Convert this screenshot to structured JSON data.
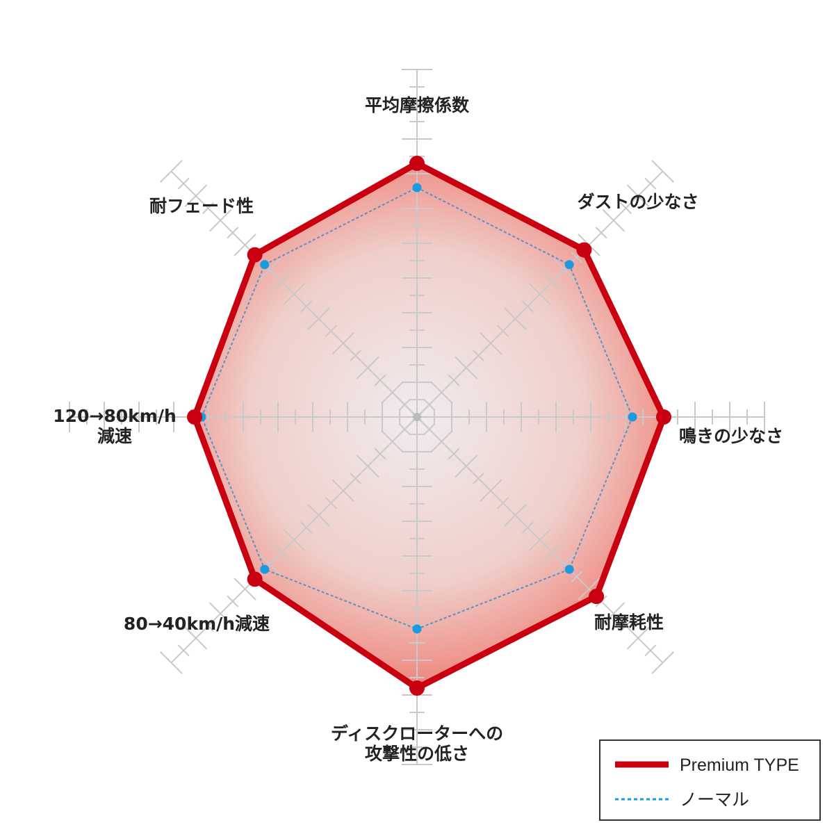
{
  "chart_data": {
    "type": "radar",
    "axis_range": [
      0,
      10
    ],
    "major_tick_step": 1,
    "minor_tick_step": 0.5,
    "grid": true,
    "legend_position": "bottom-right",
    "axes": [
      {
        "label": [
          "平均摩擦係数"
        ]
      },
      {
        "label": [
          "ダストの少なさ"
        ]
      },
      {
        "label": [
          "鳴きの少なさ"
        ]
      },
      {
        "label": [
          "耐摩耗性"
        ]
      },
      {
        "label": [
          "ディスクローターへの",
          "攻撃性の低さ"
        ]
      },
      {
        "label": [
          "80→40km/h減速"
        ]
      },
      {
        "label": [
          "120→80km/h",
          "減速"
        ]
      },
      {
        "label": [
          "耐フェード性"
        ]
      }
    ],
    "series": [
      {
        "name": "Premium TYPE",
        "color": "#c8000f",
        "style": "solid",
        "values": [
          7.3,
          6.8,
          7.1,
          7.3,
          7.8,
          6.6,
          6.4,
          6.6
        ]
      },
      {
        "name": "ノーマル",
        "color": "#1a9be0",
        "style": "dotted",
        "values": [
          6.6,
          6.2,
          6.2,
          6.2,
          6.1,
          6.2,
          6.2,
          6.2
        ]
      }
    ]
  }
}
